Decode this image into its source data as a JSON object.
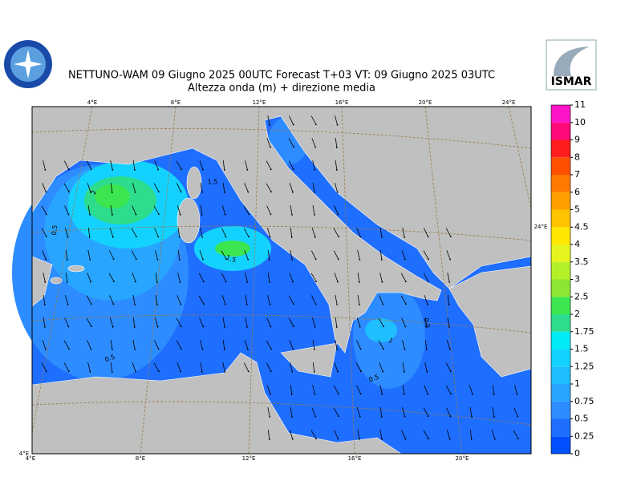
{
  "header": {
    "title": "NETTUNO-WAM  09   Giugno  2025 00UTC Forecast T+03 VT: 09   Giugno  2025 03UTC",
    "subtitle": "Altezza onda (m) + direzione media",
    "logo_right": "ISMAR"
  },
  "map": {
    "top_lon_labels": [
      "4°E",
      "8°E",
      "12°E",
      "16°E",
      "20°E",
      "24°E"
    ],
    "bottom_lon_labels": [
      "4°E",
      "8°E",
      "12°E",
      "16°E",
      "20°E"
    ],
    "corner_label": "4°E",
    "right_label": "24°E",
    "contour_labels": [
      "2",
      "1.5",
      "1.5",
      "0.5",
      "0.5",
      "0.5",
      "1",
      "0.5"
    ]
  },
  "colorbar": {
    "levels": [
      0,
      0.25,
      0.5,
      0.75,
      1,
      1.25,
      1.5,
      1.75,
      2,
      2.5,
      3,
      3.5,
      4,
      4.5,
      5,
      6,
      7,
      8,
      9,
      10,
      11
    ],
    "colors": [
      "#0050ff",
      "#1e6eff",
      "#2d8cff",
      "#28a5ff",
      "#1ebeff",
      "#14d2ff",
      "#00ebf5",
      "#2ddc8c",
      "#3ce650",
      "#8ce632",
      "#b4f028",
      "#e6f51e",
      "#ffe600",
      "#ffc300",
      "#ffa000",
      "#ff7800",
      "#ff5000",
      "#ff1e1e",
      "#ff0a78",
      "#ff14c8"
    ]
  }
}
